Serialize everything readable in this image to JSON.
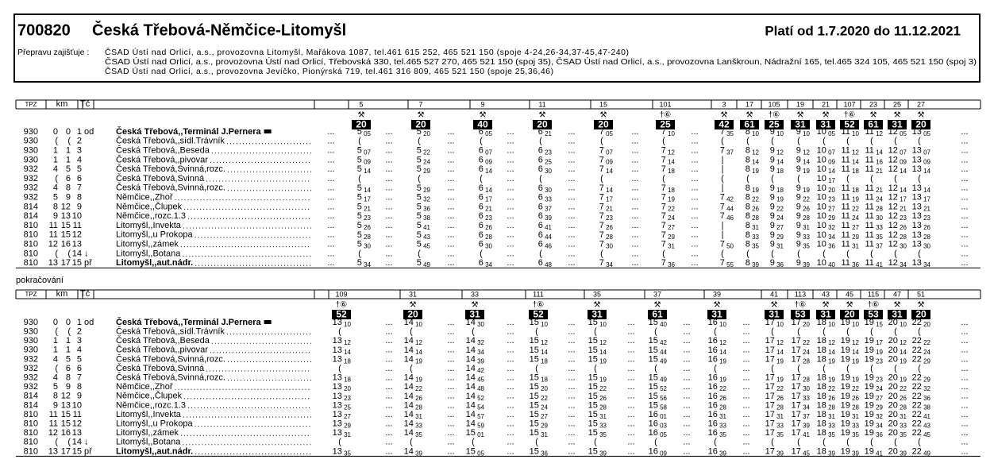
{
  "header": {
    "number": "700820",
    "title": "Česká Třebová-Němčice-Litomyšl",
    "validity": "Platí od 1.7.2020 do 11.12.2021",
    "carrier_label": "Přepravu zajišťuje :",
    "carriers": [
      "ČSAD Ústí nad Orlicí, a.s., provozovna Litomyšl, Mařákova 1087, tel.461 615 252, 465 521 150 (spoje 4-24,26-34,37-45,47-240)",
      "ČSAD Ústí nad Orlicí, a.s., provozovna Ústí nad Orlicí, Třebovská 330, tel.465 527 270, 465 521 150 (spoj 35), ČSAD Ústí nad Orlicí, a.s., provozovna Lanškroun, Nádražní 165, tel.465 324 105, 465 521 150 (spoj 3)",
      "ČSAD Ústí nad Orlicí, a.s., provozovna Jevíčko, Pionýrská 719, tel.461 316 809, 465 521 150 (spoje 25,36,46)"
    ]
  },
  "columns": {
    "tpz": "TPZ",
    "km": "km",
    "tc": "Tč"
  },
  "filler": "...",
  "stations": [
    {
      "tpz": "930",
      "km_a": "0",
      "km_b": "0",
      "tc": "1",
      "mode": "od",
      "name": "Česká Třebová,,Terminál J.Pernera"
    },
    {
      "tpz": "930",
      "km_a": "(",
      "km_b": "(",
      "tc": "2",
      "name": "Česká Třebová,,sídl.Trávník"
    },
    {
      "tpz": "930",
      "km_a": "1",
      "km_b": "1",
      "tc": "3",
      "name": "Česká Třebová,,Beseda"
    },
    {
      "tpz": "930",
      "km_a": "1",
      "km_b": "1",
      "tc": "4",
      "name": "Česká Třebová,,pivovar"
    },
    {
      "tpz": "932",
      "km_a": "4",
      "km_b": "5",
      "tc": "5",
      "name": "Česká Třebová,Svinná,rozc."
    },
    {
      "tpz": "932",
      "km_a": "(",
      "km_b": "6",
      "tc": "6",
      "name": "Česká Třebová,Svinná"
    },
    {
      "tpz": "932",
      "km_a": "4",
      "km_b": "8",
      "tc": "7",
      "name": "Česká Třebová,Svinná,rozc."
    },
    {
      "tpz": "932",
      "km_a": "5",
      "km_b": "9",
      "tc": "8",
      "name": "Němčice,,Zhoř"
    },
    {
      "tpz": "814",
      "km_a": "8",
      "km_b": "12",
      "tc": "9",
      "name": "Němčice,,Člupek"
    },
    {
      "tpz": "814",
      "km_a": "9",
      "km_b": "13",
      "tc": "10",
      "name": "Němčice,,rozc.1.3"
    },
    {
      "tpz": "810",
      "km_a": "11",
      "km_b": "15",
      "tc": "11",
      "name": "Litomyšl,,Invekta"
    },
    {
      "tpz": "810",
      "km_a": "11",
      "km_b": "15",
      "tc": "12",
      "name": "Litomyšl,,u Prokopa"
    },
    {
      "tpz": "810",
      "km_a": "12",
      "km_b": "16",
      "tc": "13",
      "name": "Litomyšl,,zámek"
    },
    {
      "tpz": "810",
      "km_a": "(",
      "km_b": "(",
      "tc": "14",
      "mode": "↓",
      "name": "Litomyšl,,Botana"
    },
    {
      "tpz": "810",
      "km_a": "13",
      "km_b": "17",
      "tc": "15",
      "mode": "př",
      "name": "Litomyšl,,aut.nádr."
    }
  ],
  "sections": [
    {
      "trains": [
        {
          "number": "5",
          "symbol": "⚒",
          "badge": "20",
          "times": [
            "5 05",
            "(",
            "5 07",
            "5 09",
            "5 14",
            "(",
            "5 14",
            "5 17",
            "5 21",
            "5 23",
            "5 26",
            "5 28",
            "5 30",
            "(",
            "5 34"
          ]
        },
        {
          "number": "7",
          "symbol": "⚒",
          "badge": "20",
          "times": [
            "5 20",
            "(",
            "5 22",
            "5 24",
            "5 29",
            "(",
            "5 29",
            "5 32",
            "5 36",
            "5 38",
            "5 41",
            "5 43",
            "5 45",
            "(",
            "5 49"
          ]
        },
        {
          "number": "9",
          "symbol": "⚒",
          "badge": "40",
          "times": [
            "6 05",
            "(",
            "6 07",
            "6 09",
            "6 14",
            "(",
            "6 14",
            "6 17",
            "6 21",
            "6 23",
            "6 26",
            "6 28",
            "6 30",
            "(",
            "6 34"
          ]
        },
        {
          "number": "11",
          "symbol": "⚒",
          "badge": "20",
          "times": [
            "6 21",
            "(",
            "6 23",
            "6 25",
            "6 30",
            "(",
            "6 30",
            "6 33",
            "6 37",
            "6 39",
            "6 41",
            "6 44",
            "6 46",
            "(",
            "6 48"
          ]
        },
        {
          "number": "15",
          "symbol": "⚒",
          "badge": "20",
          "times": [
            "7 05",
            "(",
            "7 07",
            "7 09",
            "7 14",
            "(",
            "7 14",
            "7 17",
            "7 21",
            "7 23",
            "7 26",
            "7 28",
            "7 30",
            "(",
            "7 34"
          ]
        },
        {
          "number": "101",
          "symbol": "†⑥",
          "badge": "25",
          "times": [
            "7 10",
            "(",
            "7 12",
            "7 14",
            "7 18",
            "(",
            "7 18",
            "7 19",
            "7 22",
            "7 24",
            "7 27",
            "7 29",
            "7 31",
            "(",
            "7 36"
          ]
        },
        {
          "number": "3",
          "symbol": "⚒",
          "badge": "42",
          "times": [
            "7 35",
            "(",
            "7 37",
            "|",
            "|",
            "(",
            "|",
            "7 42",
            "7 44",
            "7 46",
            "|",
            "|",
            "7 50",
            "(",
            "7 55"
          ]
        },
        {
          "number": "17",
          "symbol": "⚒",
          "badge": "61",
          "times": [
            "8 10",
            "(",
            "8 12",
            "8 14",
            "8 19",
            "(",
            "8 19",
            "8 22",
            "8 26",
            "8 28",
            "8 31",
            "8 33",
            "8 35",
            "(",
            "8 39"
          ]
        },
        {
          "number": "105",
          "symbol": "†⑥",
          "badge": "25",
          "times": [
            "9 10",
            "(",
            "9 12",
            "9 14",
            "9 18",
            "(",
            "9 18",
            "9 19",
            "9 22",
            "9 24",
            "9 27",
            "9 29",
            "9 31",
            "(",
            "9 36"
          ]
        },
        {
          "number": "19",
          "symbol": "⚒",
          "badge": "31",
          "times": [
            "9 10",
            "(",
            "9 12",
            "9 14",
            "9 19",
            "(",
            "9 19",
            "9 22",
            "9 26",
            "9 28",
            "9 31",
            "9 33",
            "9 35",
            "(",
            "9 39"
          ]
        },
        {
          "number": "21",
          "symbol": "⚒",
          "badge": "31",
          "times": [
            "10 05",
            "(",
            "10 07",
            "10 09",
            "10 14",
            "10 17",
            "10 20",
            "10 23",
            "10 27",
            "10 29",
            "10 32",
            "10 34",
            "10 36",
            "(",
            "10 40"
          ]
        },
        {
          "number": "107",
          "symbol": "†⑥",
          "badge": "52",
          "times": [
            "11 10",
            "(",
            "11 12",
            "11 14",
            "11 18",
            "(",
            "11 18",
            "11 19",
            "11 22",
            "11 24",
            "11 27",
            "11 29",
            "11 31",
            "(",
            "11 36"
          ]
        },
        {
          "number": "23",
          "symbol": "⚒",
          "badge": "61",
          "times": [
            "11 12",
            "(",
            "11 14",
            "11 16",
            "11 21",
            "(",
            "11 21",
            "11 24",
            "11 28",
            "11 30",
            "11 33",
            "11 35",
            "11 37",
            "(",
            "11 41"
          ]
        },
        {
          "number": "25",
          "symbol": "⚒",
          "badge": "31",
          "times": [
            "12 05",
            "(",
            "12 07",
            "12 09",
            "12 14",
            "(",
            "12 14",
            "12 17",
            "12 21",
            "12 23",
            "12 26",
            "12 28",
            "12 30",
            "(",
            "12 34"
          ]
        },
        {
          "number": "27",
          "symbol": "⚒",
          "badge": "20",
          "times": [
            "13 05",
            "(",
            "13 07",
            "13 09",
            "13 14",
            "(",
            "13 14",
            "13 17",
            "13 21",
            "13 23",
            "13 26",
            "13 28",
            "13 30",
            "(",
            "13 34"
          ]
        }
      ]
    },
    {
      "label": "pokračování",
      "trains": [
        {
          "number": "109",
          "symbol": "†⑥",
          "badge": "52",
          "times": [
            "13 10",
            "(",
            "13 12",
            "13 14",
            "13 18",
            "(",
            "13 18",
            "13 20",
            "13 23",
            "13 25",
            "13 27",
            "13 29",
            "13 31",
            "(",
            "13 35"
          ]
        },
        {
          "number": "31",
          "symbol": "⚒",
          "badge": "20",
          "times": [
            "14 10",
            "(",
            "14 12",
            "14 14",
            "14 19",
            "(",
            "14 19",
            "14 22",
            "14 26",
            "14 28",
            "14 31",
            "14 33",
            "14 35",
            "(",
            "14 39"
          ]
        },
        {
          "number": "33",
          "symbol": "⚒",
          "badge": "31",
          "times": [
            "14 30",
            "(",
            "14 32",
            "14 34",
            "14 39",
            "14 42",
            "14 45",
            "14 48",
            "14 52",
            "14 54",
            "14 57",
            "14 59",
            "15 01",
            "(",
            "15 05"
          ]
        },
        {
          "number": "111",
          "symbol": "†⑥",
          "badge": "52",
          "times": [
            "15 10",
            "(",
            "15 12",
            "15 14",
            "15 18",
            "(",
            "15 18",
            "15 20",
            "15 22",
            "15 24",
            "15 27",
            "15 29",
            "15 31",
            "(",
            "15 36"
          ]
        },
        {
          "number": "35",
          "symbol": "⚒",
          "badge": "31",
          "times": [
            "15 10",
            "(",
            "15 12",
            "15 14",
            "15 19",
            "(",
            "15 19",
            "15 22",
            "15 26",
            "15 28",
            "15 31",
            "15 33",
            "15 35",
            "(",
            "15 39"
          ]
        },
        {
          "number": "37",
          "symbol": "⚒",
          "badge": "61",
          "times": [
            "15 40",
            "(",
            "15 42",
            "15 44",
            "15 49",
            "(",
            "15 49",
            "15 52",
            "15 56",
            "15 58",
            "16 01",
            "16 03",
            "16 05",
            "(",
            "16 09"
          ]
        },
        {
          "number": "39",
          "symbol": "⚒",
          "badge": "31",
          "times": [
            "16 10",
            "(",
            "16 12",
            "16 14",
            "16 19",
            "(",
            "16 19",
            "16 22",
            "16 26",
            "16 28",
            "16 31",
            "16 33",
            "16 35",
            "(",
            "16 39"
          ]
        },
        {
          "number": "41",
          "symbol": "⚒",
          "badge": "31",
          "times": [
            "17 10",
            "(",
            "17 12",
            "17 14",
            "17 19",
            "(",
            "17 19",
            "17 22",
            "17 26",
            "17 28",
            "17 31",
            "17 33",
            "17 35",
            "(",
            "17 39"
          ]
        },
        {
          "number": "113",
          "symbol": "†⑥",
          "badge": "53",
          "times": [
            "17 20",
            "(",
            "17 22",
            "17 24",
            "17 28",
            "(",
            "17 28",
            "17 30",
            "17 33",
            "17 34",
            "17 37",
            "17 39",
            "17 41",
            "(",
            "17 45"
          ]
        },
        {
          "number": "43",
          "symbol": "⚒",
          "badge": "31",
          "times": [
            "18 10",
            "(",
            "18 12",
            "18 14",
            "18 19",
            "(",
            "18 19",
            "18 22",
            "18 26",
            "18 28",
            "18 31",
            "18 33",
            "18 35",
            "(",
            "18 39"
          ]
        },
        {
          "number": "45",
          "symbol": "⚒",
          "badge": "20",
          "times": [
            "19 10",
            "(",
            "19 12",
            "19 14",
            "19 19",
            "(",
            "19 19",
            "19 22",
            "19 26",
            "19 28",
            "19 31",
            "19 33",
            "19 35",
            "(",
            "19 39"
          ]
        },
        {
          "number": "115",
          "symbol": "†⑥",
          "badge": "53",
          "times": [
            "19 15",
            "(",
            "19 17",
            "19 19",
            "19 23",
            "(",
            "19 23",
            "19 24",
            "19 27",
            "19 29",
            "19 32",
            "19 34",
            "19 36",
            "(",
            "19 41"
          ]
        },
        {
          "number": "47",
          "symbol": "⚒",
          "badge": "31",
          "times": [
            "20 10",
            "(",
            "20 12",
            "20 14",
            "20 19",
            "(",
            "20 19",
            "20 22",
            "20 26",
            "20 28",
            "20 31",
            "20 33",
            "20 35",
            "(",
            "20 39"
          ]
        },
        {
          "number": "51",
          "symbol": "⚒",
          "badge": "20",
          "times": [
            "22 20",
            "(",
            "22 22",
            "22 24",
            "22 29",
            "(",
            "22 29",
            "22 32",
            "22 36",
            "22 38",
            "22 41",
            "22 43",
            "22 45",
            "(",
            "22 49"
          ]
        }
      ]
    }
  ]
}
